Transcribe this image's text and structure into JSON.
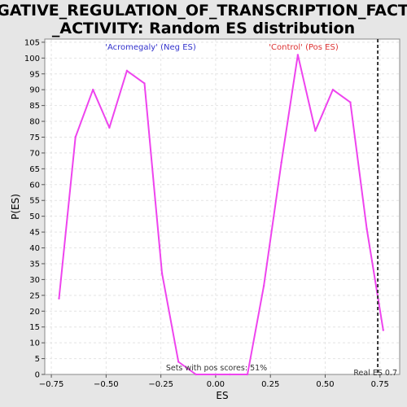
{
  "chart_data": {
    "type": "line",
    "title_lines": [
      "NEGATIVE_REGULATION_OF_TRANSCRIPTION_FACTOR",
      "_ACTIVITY: Random ES distribution"
    ],
    "xlabel": "ES",
    "ylabel": "P(ES)",
    "xlim": [
      -0.78,
      0.84
    ],
    "ylim": [
      0,
      106
    ],
    "x_ticks": [
      -0.75,
      -0.5,
      -0.25,
      0.0,
      0.25,
      0.5,
      0.75
    ],
    "x_tick_labels": [
      "−0.75",
      "−0.50",
      "−0.25",
      "0.00",
      "0.25",
      "0.50",
      "0.75"
    ],
    "y_ticks": [
      0,
      5,
      10,
      15,
      20,
      25,
      30,
      35,
      40,
      45,
      50,
      55,
      60,
      65,
      70,
      75,
      80,
      85,
      90,
      95,
      100,
      105
    ],
    "grid": true,
    "series": [
      {
        "color": "#ee44ee",
        "x": [
          -0.715,
          -0.64,
          -0.56,
          -0.485,
          -0.405,
          -0.325,
          -0.245,
          -0.17,
          -0.09,
          0.0,
          0.065,
          0.145,
          0.22,
          0.3,
          0.375,
          0.455,
          0.535,
          0.615,
          0.69,
          0.765
        ],
        "y": [
          24,
          75,
          90,
          78,
          96,
          92,
          32,
          4,
          0,
          0,
          0,
          0,
          28,
          67,
          101,
          77,
          90,
          86,
          46,
          14
        ]
      }
    ],
    "annotations": {
      "neg_label": "'Acromegaly' (Neg ES)",
      "neg_color": "#3333cc",
      "pos_label": "'Control' (Pos ES)",
      "pos_color": "#dd3333",
      "footer": "Sets with pos scores: 51%",
      "real_es_label": "Real ES 0.7",
      "real_es_value": 0.74
    }
  }
}
